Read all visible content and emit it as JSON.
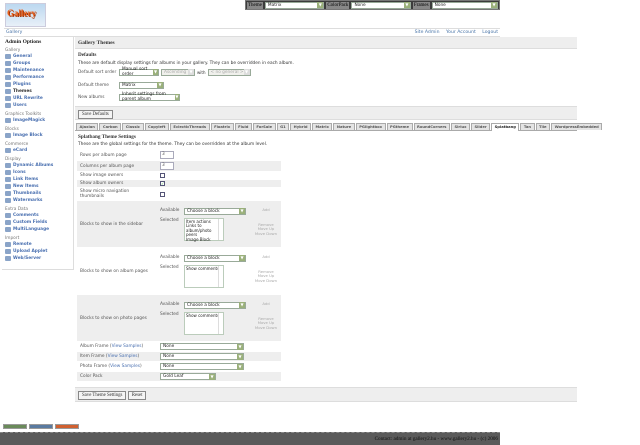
{
  "topbar": {
    "theme_label": "Theme",
    "theme": "Matrix",
    "colorpack_label": "ColorPack",
    "colorpack": "None",
    "frames_label": "Frames",
    "frames": "None"
  },
  "logo": "Gallery",
  "breadcrumb": {
    "root": "Gallery",
    "links": [
      "Site Admin",
      "Your Account",
      "Logout"
    ]
  },
  "sidebar": {
    "title": "Admin Options",
    "groups": [
      {
        "label": "Gallery",
        "items": [
          "General",
          "Groups",
          "Maintenance",
          "Performance",
          "Plugins",
          "Themes",
          "URL Rewrite",
          "Users"
        ],
        "current": 5
      },
      {
        "label": "Graphics Toolkits",
        "items": [
          "ImageMagick"
        ]
      },
      {
        "label": "Blocks",
        "items": [
          "Image Block"
        ]
      },
      {
        "label": "Commerce",
        "items": [
          "eCard"
        ]
      },
      {
        "label": "Display",
        "items": [
          "Dynamic Albums",
          "Icons",
          "Link Items",
          "New Items",
          "Thumbnails",
          "Watermarks"
        ]
      },
      {
        "label": "Extra Data",
        "items": [
          "Comments",
          "Custom Fields",
          "MultiLanguage"
        ]
      },
      {
        "label": "Import",
        "items": [
          "Remote",
          "Upload Applet",
          "Web/Server"
        ]
      }
    ]
  },
  "main": {
    "title": "Gallery Themes",
    "defaults_title": "Defaults",
    "defaults_desc": "These are default display settings for albums in your gallery. They can be overridden in each album.",
    "sort_label": "Default sort order",
    "sort_value": "Manual sort order",
    "sort_dir": "Ascending",
    "with_label": "with",
    "secondary": "< no general >",
    "theme_label": "Default theme",
    "theme_value": "Matrix",
    "new_albums_label": "New albums",
    "new_albums_value": "Inherit settings from parent album",
    "save_defaults": "Save Defaults",
    "tabs": [
      "Ajaxian",
      "Carbon",
      "Classic",
      "Copyleft",
      "EclecticThreads",
      "Floatrix",
      "Fluid",
      "ForSale",
      "G1",
      "Hybrid",
      "Matrix",
      "Nature",
      "PGlightbox",
      "PGtheme",
      "RoundCorners",
      "Siriux",
      "Slider",
      "Splatbang",
      "Tan",
      "Tile",
      "WordpressEmbedded"
    ],
    "active_tab": 17,
    "settings_title": "Splatbang Theme Settings",
    "settings_desc": "These are the global settings for the theme. They can be overridden at the album level.",
    "rows_label": "Rows per album page",
    "rows": "3",
    "cols_label": "Columns per album page",
    "cols": "3",
    "image_owners_label": "Show image owners",
    "image_owners": false,
    "album_owners_label": "Show album owners",
    "album_owners": true,
    "micro_label": "Show micro navigation thumbnails",
    "micro": false,
    "available_label": "Available",
    "selected_label": "Selected",
    "choose": "Choose a block",
    "add": "Add",
    "remove": "Remove",
    "move_up": "Move Up",
    "move_down": "Move Down",
    "sidebar_blocks_label": "Blocks to show in the sidebar",
    "sidebar_blocks": [
      "Item actions",
      "Links to album/photo peers",
      "Image Block"
    ],
    "album_blocks_label": "Blocks to show on album pages",
    "album_blocks": [
      "Show comments"
    ],
    "photo_blocks_label": "Blocks to show on photo pages",
    "photo_blocks": [
      "Show comments"
    ],
    "album_frame_label": "Album Frame",
    "item_frame_label": "Item Frame",
    "photo_frame_label": "Photo Frame",
    "view_samples": "View Samples",
    "album_frame": "None",
    "item_frame": "None",
    "photo_frame": "None",
    "color_pack_label": "Color Pack",
    "color_pack": "Gold Leaf",
    "save_theme": "Save Theme Settings",
    "reset": "Reset"
  },
  "footer": "Contact: admin at gallery2.hu - www.gallery2.hu - (c) 2006"
}
